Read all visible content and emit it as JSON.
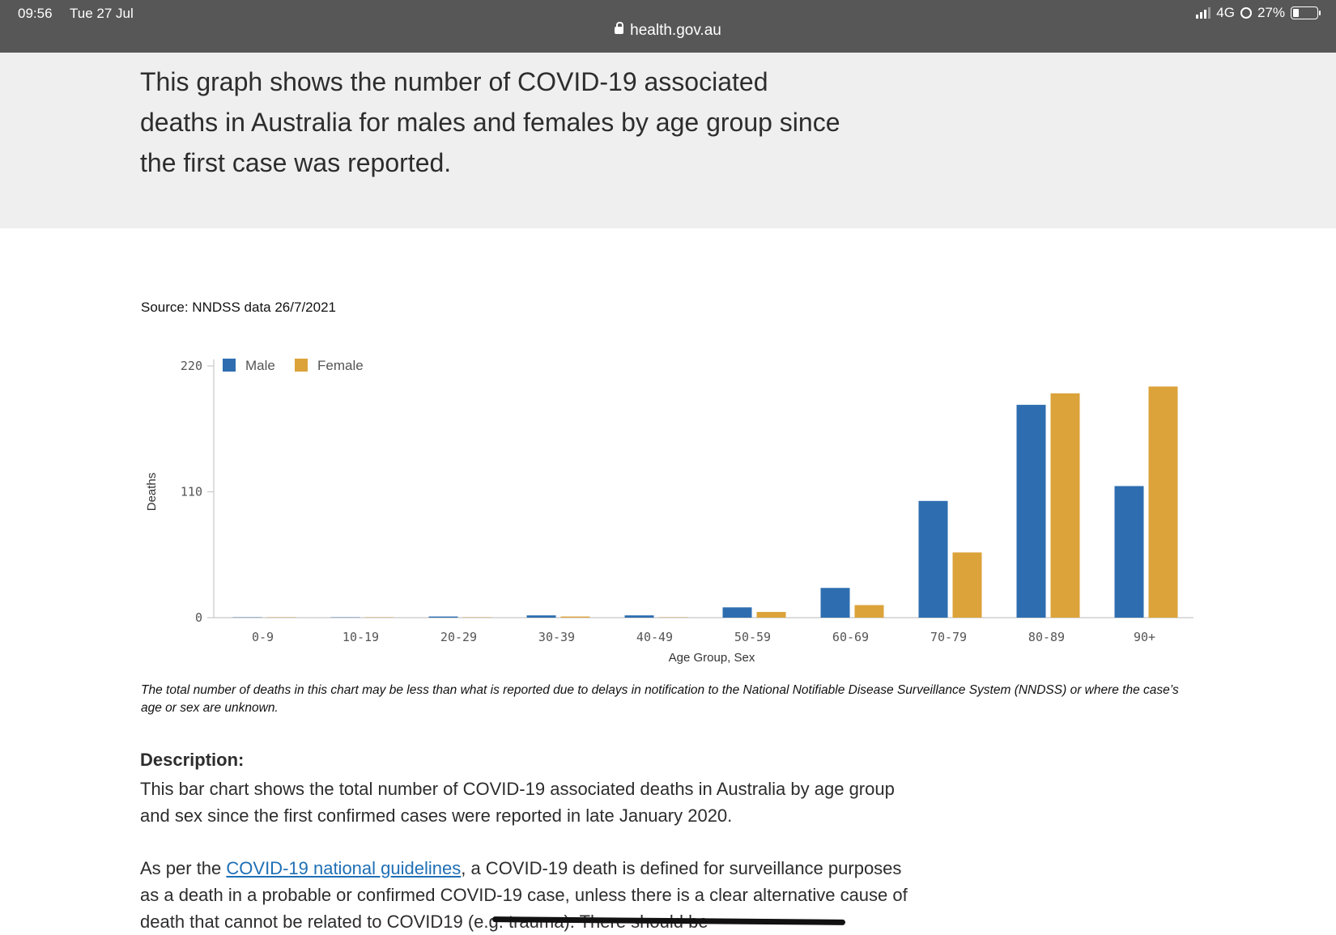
{
  "status_bar": {
    "time": "09:56",
    "date": "Tue 27 Jul",
    "url": "health.gov.au",
    "network": "4G",
    "battery": "27%"
  },
  "intro": {
    "text": "This graph shows the number of COVID-19 associated deaths in Australia for males and females by age group since the first case was reported."
  },
  "source": "Source: NNDSS data 26/7/2021",
  "chart_data": {
    "type": "bar",
    "title": "",
    "xlabel": "Age Group, Sex",
    "ylabel": "Deaths",
    "ylim": [
      0,
      220
    ],
    "yticks": [
      "0",
      "110",
      "220"
    ],
    "categories": [
      "0-9",
      "10-19",
      "20-29",
      "30-39",
      "40-49",
      "50-59",
      "60-69",
      "70-79",
      "80-89",
      "90+"
    ],
    "series": [
      {
        "name": "Male",
        "color": "#2e6eb0",
        "values": [
          0,
          0,
          1,
          2,
          2,
          9,
          26,
          102,
          186,
          115
        ]
      },
      {
        "name": "Female",
        "color": "#dba33a",
        "values": [
          0,
          0,
          0,
          1,
          0,
          5,
          11,
          57,
          196,
          202
        ]
      }
    ],
    "legend_position": "top-left",
    "grid": false
  },
  "note": "The total number of deaths in this chart may be less than what is reported due to delays in notification to the National Notifiable Disease Surveillance System (NNDSS) or where the case’s age or sex are unknown.",
  "description": {
    "heading": "Description:",
    "para1": "This bar chart shows the total number of COVID-19 associated deaths in Australia by age group and sex since the first confirmed cases were reported in late January 2020.",
    "para2_pre": "As per the ",
    "para2_link": "COVID-19 national guidelines",
    "para2_post": ", a COVID-19 death is defined for surveillance purposes as a death in a probable or confirmed COVID-19 case, unless there is a clear alternative cause of death that cannot be related to COVID19 (e.g. trauma). There should be"
  }
}
